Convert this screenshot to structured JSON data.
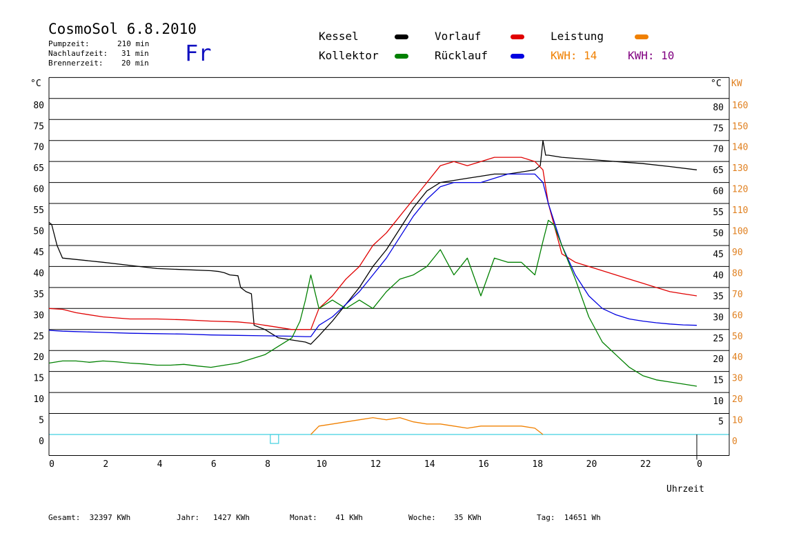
{
  "header": {
    "title": "CosmoSol 6.8.2010",
    "day": "Fr",
    "info": [
      {
        "label": "Pumpzeit:",
        "value": "210 min"
      },
      {
        "label": "Nachlaufzeit:",
        "value": "31 min"
      },
      {
        "label": "Brennerzeit:",
        "value": "20 min"
      }
    ]
  },
  "legend": {
    "kessel": {
      "label": "Kessel",
      "color": "#000000"
    },
    "kollektor": {
      "label": "Kollektor",
      "color": "#008000"
    },
    "vorlauf": {
      "label": "Vorlauf",
      "color": "#e00000"
    },
    "ruecklauf": {
      "label": "Rücklauf",
      "color": "#0000e0"
    },
    "leistung": {
      "label": "Leistung",
      "color": "#f08000"
    },
    "kwh1": {
      "label": "KWH:",
      "value": "14",
      "color": "#f08000"
    },
    "kwh2": {
      "label": "KWH:",
      "value": "10",
      "color": "#800080"
    }
  },
  "axes": {
    "y_left_unit": "°C",
    "y_right_unit": "°C",
    "y_right2_unit": "KW",
    "x_label": "Uhrzeit"
  },
  "footer": [
    {
      "label": "Gesamt:",
      "value": "32397 KWh"
    },
    {
      "label": "Jahr:",
      "value": "1427 KWh"
    },
    {
      "label": "Monat:",
      "value": "41 KWh"
    },
    {
      "label": "Woche:",
      "value": "35 KWh"
    },
    {
      "label": "Tag:",
      "value": "14651 Wh"
    }
  ],
  "chart_data": {
    "type": "line",
    "xlabel": "Uhrzeit",
    "xlim": [
      0,
      24
    ],
    "ylim": [
      -5,
      85
    ],
    "y2lim": [
      -10,
      170
    ],
    "x_ticks": [
      "0",
      "2",
      "4",
      "6",
      "8",
      "10",
      "12",
      "14",
      "16",
      "18",
      "20",
      "22",
      "0"
    ],
    "y_ticks": [
      "0",
      "5",
      "10",
      "15",
      "20",
      "25",
      "30",
      "35",
      "40",
      "45",
      "50",
      "55",
      "60",
      "65",
      "70",
      "75",
      "80"
    ],
    "y_right_ticks": [
      "5",
      "10",
      "15",
      "20",
      "25",
      "30",
      "35",
      "40",
      "45",
      "50",
      "55",
      "60",
      "65",
      "70",
      "75",
      "80"
    ],
    "y2_ticks": [
      "0",
      "10",
      "20",
      "30",
      "40",
      "50",
      "60",
      "70",
      "80",
      "90",
      "100",
      "110",
      "120",
      "130",
      "140",
      "150",
      "160"
    ],
    "grid": true,
    "series": [
      {
        "name": "Kessel",
        "color": "#000000",
        "x": [
          0,
          0.1,
          0.3,
          0.5,
          2,
          4,
          6,
          6.3,
          6.5,
          6.7,
          7,
          7.1,
          7.3,
          7.5,
          7.6,
          8,
          8.5,
          9,
          9.5,
          9.7,
          10,
          10.5,
          11,
          11.5,
          12,
          12.5,
          13,
          13.5,
          14,
          14.5,
          15,
          15.5,
          16,
          16.5,
          17,
          17.5,
          18,
          18.2,
          18.3,
          18.4,
          18.5,
          19,
          20,
          21,
          22,
          23,
          24
        ],
        "y": [
          50.5,
          50,
          45,
          42,
          41,
          39.5,
          39,
          38.8,
          38.5,
          38,
          37.8,
          35,
          34,
          33.5,
          26,
          25,
          23,
          22.5,
          22,
          21.5,
          23.5,
          27,
          31,
          35,
          40,
          44,
          49,
          54,
          58,
          60,
          60.5,
          61,
          61.5,
          62,
          62,
          62.5,
          63,
          64,
          70,
          66.5,
          66.5,
          66,
          65.5,
          65,
          64.5,
          63.8,
          63
        ]
      },
      {
        "name": "Vorlauf",
        "color": "#e00000",
        "x": [
          0,
          0.5,
          1,
          2,
          3,
          4,
          5,
          6,
          7,
          7.5,
          8,
          8.5,
          9,
          9.5,
          9.7,
          10,
          10.5,
          11,
          11.5,
          12,
          12.5,
          13,
          13.5,
          14,
          14.5,
          15,
          15.5,
          16,
          16.5,
          17,
          17.5,
          18,
          18.3,
          18.5,
          19,
          19.5,
          20,
          20.5,
          21,
          21.5,
          22,
          22.5,
          23,
          23.5,
          24
        ],
        "y": [
          30,
          29.8,
          29,
          28,
          27.5,
          27.5,
          27.3,
          27,
          26.8,
          26.5,
          26,
          25.5,
          25,
          25,
          25,
          30,
          33,
          37,
          40,
          45,
          48,
          52,
          56,
          60,
          64,
          65,
          64,
          65,
          66,
          66,
          66,
          65,
          63,
          55,
          43,
          41,
          40,
          39,
          38,
          37,
          36,
          35,
          34,
          33.5,
          33
        ]
      },
      {
        "name": "Rücklauf",
        "color": "#0000e0",
        "x": [
          0,
          0.5,
          1,
          2,
          3,
          4,
          5,
          6,
          7,
          8,
          9,
          9.5,
          9.7,
          10,
          10.5,
          11,
          11.5,
          12,
          12.5,
          13,
          13.5,
          14,
          14.5,
          15,
          15.5,
          16,
          16.5,
          17,
          17.5,
          18,
          18.3,
          18.5,
          19,
          19.5,
          20,
          20.5,
          21,
          21.5,
          22,
          22.5,
          23,
          23.5,
          24
        ],
        "y": [
          24.8,
          24.6,
          24.5,
          24.3,
          24.1,
          24,
          23.9,
          23.7,
          23.6,
          23.5,
          23.4,
          23.3,
          23.3,
          26,
          28,
          31,
          34,
          38,
          42,
          47,
          52,
          56,
          59,
          60,
          60,
          60,
          61,
          62,
          62,
          62,
          60,
          55,
          45,
          38,
          33,
          30,
          28.5,
          27.5,
          27,
          26.6,
          26.3,
          26.1,
          26
        ]
      },
      {
        "name": "Kollektor",
        "color": "#008000",
        "x": [
          0,
          0.5,
          1,
          1.5,
          2,
          2.5,
          3,
          3.5,
          4,
          4.5,
          5,
          5.5,
          6,
          6.5,
          7,
          7.5,
          8,
          8.5,
          9,
          9.3,
          9.5,
          9.7,
          10,
          10.5,
          11,
          11.5,
          12,
          12.5,
          13,
          13.5,
          14,
          14.5,
          15,
          15.5,
          16,
          16.5,
          17,
          17.5,
          18,
          18.3,
          18.5,
          18.7,
          19,
          19.5,
          20,
          20.5,
          21,
          21.5,
          22,
          22.5,
          23,
          23.5,
          24
        ],
        "y": [
          17,
          17.5,
          17.5,
          17.2,
          17.5,
          17.3,
          17,
          16.8,
          16.5,
          16.5,
          16.7,
          16.3,
          16,
          16.5,
          17,
          18,
          19,
          21,
          23,
          27,
          32,
          38,
          30,
          32,
          30,
          32,
          30,
          34,
          37,
          38,
          40,
          44,
          38,
          42,
          33,
          42,
          41,
          41,
          38,
          46,
          51,
          50,
          45,
          37,
          28,
          22,
          19,
          16,
          14,
          13,
          12.5,
          12,
          11.5
        ]
      },
      {
        "name": "Leistung",
        "color": "#f08000",
        "x": [
          9.7,
          10,
          10.5,
          11,
          11.5,
          12,
          12.5,
          13,
          13.5,
          14,
          14.5,
          15,
          15.5,
          16,
          16.5,
          17,
          17.5,
          18,
          18.3
        ],
        "y2": [
          0,
          4,
          5,
          6,
          7,
          8,
          7,
          8,
          6,
          5,
          5,
          4,
          3,
          4,
          4,
          4,
          4,
          3,
          0
        ]
      }
    ]
  }
}
